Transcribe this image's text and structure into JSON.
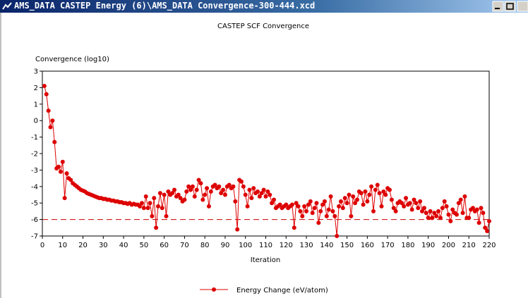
{
  "window_title": "AMS_DATA CASTEP Energy (6)\\AMS_DATA Convergence-300-444.xcd",
  "chart_data": {
    "type": "line",
    "title": "CASTEP SCF Convergence",
    "y_label": "Convergence (log10)",
    "x_label": "Iteration",
    "xlim": [
      0,
      220
    ],
    "ylim": [
      -7,
      3
    ],
    "xticks": [
      0,
      10,
      20,
      30,
      40,
      50,
      60,
      70,
      80,
      90,
      100,
      110,
      120,
      130,
      140,
      150,
      160,
      170,
      180,
      190,
      200,
      210,
      220
    ],
    "yticks": [
      3,
      2,
      1,
      0,
      -1,
      -2,
      -3,
      -4,
      -5,
      -6,
      -7
    ],
    "reference_line": {
      "value": -6,
      "color": "#cc0000"
    },
    "legend": "bottom",
    "x": [
      1,
      2,
      3,
      4,
      5,
      6,
      7,
      8,
      9,
      10,
      11,
      12,
      13,
      14,
      15,
      16,
      17,
      18,
      19,
      20,
      21,
      22,
      23,
      24,
      25,
      26,
      27,
      28,
      29,
      30,
      31,
      32,
      33,
      34,
      35,
      36,
      37,
      38,
      39,
      40,
      41,
      42,
      43,
      44,
      45,
      46,
      47,
      48,
      49,
      50,
      51,
      52,
      53,
      54,
      55,
      56,
      57,
      58,
      59,
      60,
      61,
      62,
      63,
      64,
      65,
      66,
      67,
      68,
      69,
      70,
      71,
      72,
      73,
      74,
      75,
      76,
      77,
      78,
      79,
      80,
      81,
      82,
      83,
      84,
      85,
      86,
      87,
      88,
      89,
      90,
      91,
      92,
      93,
      94,
      95,
      96,
      97,
      98,
      99,
      100,
      101,
      102,
      103,
      104,
      105,
      106,
      107,
      108,
      109,
      110,
      111,
      112,
      113,
      114,
      115,
      116,
      117,
      118,
      119,
      120,
      121,
      122,
      123,
      124,
      125,
      126,
      127,
      128,
      129,
      130,
      131,
      132,
      133,
      134,
      135,
      136,
      137,
      138,
      139,
      140,
      141,
      142,
      143,
      144,
      145,
      146,
      147,
      148,
      149,
      150,
      151,
      152,
      153,
      154,
      155,
      156,
      157,
      158,
      159,
      160,
      161,
      162,
      163,
      164,
      165,
      166,
      167,
      168,
      169,
      170,
      171,
      172,
      173,
      174,
      175,
      176,
      177,
      178,
      179,
      180,
      181,
      182,
      183,
      184,
      185,
      186,
      187,
      188,
      189,
      190,
      191,
      192,
      193,
      194,
      195,
      196,
      197,
      198,
      199,
      200,
      201,
      202,
      203,
      204,
      205,
      206,
      207,
      208,
      209,
      210,
      211,
      212,
      213,
      214,
      215,
      216,
      217,
      218,
      219,
      220
    ],
    "series": [
      {
        "name": "Energy Change (eV/atom)",
        "color": "#dd0000",
        "values": [
          2.1,
          1.6,
          0.6,
          -0.4,
          0.0,
          -1.3,
          -2.9,
          -2.8,
          -3.1,
          -2.5,
          -4.7,
          -3.2,
          -3.5,
          -3.6,
          -3.8,
          -3.9,
          -4.0,
          -4.1,
          -4.2,
          -4.25,
          -4.3,
          -4.4,
          -4.45,
          -4.5,
          -4.55,
          -4.6,
          -4.65,
          -4.7,
          -4.7,
          -4.75,
          -4.75,
          -4.8,
          -4.8,
          -4.85,
          -4.85,
          -4.9,
          -4.9,
          -4.95,
          -4.95,
          -5.0,
          -5.0,
          -5.05,
          -5.0,
          -5.1,
          -5.05,
          -5.1,
          -5.1,
          -5.2,
          -5.0,
          -5.3,
          -4.6,
          -5.3,
          -5.0,
          -5.8,
          -4.7,
          -6.5,
          -5.2,
          -4.4,
          -5.3,
          -4.5,
          -5.8,
          -4.3,
          -4.5,
          -4.4,
          -4.2,
          -4.6,
          -4.5,
          -4.7,
          -4.9,
          -4.8,
          -4.3,
          -4.0,
          -4.2,
          -4.0,
          -4.6,
          -4.2,
          -3.6,
          -3.8,
          -4.8,
          -4.5,
          -4.1,
          -5.2,
          -4.3,
          -4.0,
          -3.9,
          -4.1,
          -4.0,
          -4.4,
          -4.2,
          -4.5,
          -4.0,
          -3.9,
          -4.1,
          -4.0,
          -4.9,
          -6.6,
          -3.6,
          -3.7,
          -4.0,
          -4.5,
          -5.2,
          -4.2,
          -4.7,
          -4.1,
          -4.4,
          -4.3,
          -4.6,
          -4.4,
          -4.2,
          -4.6,
          -4.3,
          -4.5,
          -5.0,
          -4.8,
          -5.3,
          -5.2,
          -5.1,
          -5.3,
          -5.2,
          -5.1,
          -5.3,
          -5.2,
          -5.1,
          -6.5,
          -5.0,
          -5.2,
          -5.5,
          -5.8,
          -5.2,
          -5.5,
          -5.1,
          -4.9,
          -5.6,
          -5.3,
          -5.0,
          -6.2,
          -5.5,
          -5.1,
          -4.9,
          -5.8,
          -5.4,
          -4.6,
          -5.5,
          -5.8,
          -7.0,
          -5.2,
          -4.9,
          -5.3,
          -4.7,
          -5.0,
          -4.5,
          -5.8,
          -4.6,
          -5.0,
          -4.8,
          -4.3,
          -4.4,
          -5.1,
          -4.3,
          -4.9,
          -4.5,
          -4.0,
          -5.5,
          -4.2,
          -3.9,
          -4.4,
          -5.2,
          -4.3,
          -4.5,
          -4.1,
          -4.2,
          -4.8,
          -5.3,
          -5.5,
          -5.0,
          -4.9,
          -5.0,
          -5.2,
          -4.7,
          -5.1,
          -5.0,
          -5.4,
          -4.8,
          -5.0,
          -5.3,
          -4.9,
          -5.5,
          -5.3,
          -5.6,
          -5.9,
          -5.5,
          -5.9,
          -5.6,
          -5.8,
          -5.5,
          -5.9,
          -5.3,
          -4.9,
          -5.2,
          -5.7,
          -6.1,
          -5.4,
          -5.6,
          -5.7,
          -5.0,
          -4.8,
          -5.6,
          -4.6,
          -5.9,
          -5.9,
          -5.4,
          -5.3,
          -5.5,
          -5.4,
          -6.2,
          -5.3,
          -5.6,
          -6.5,
          -6.7,
          -6.1
        ]
      }
    ]
  }
}
